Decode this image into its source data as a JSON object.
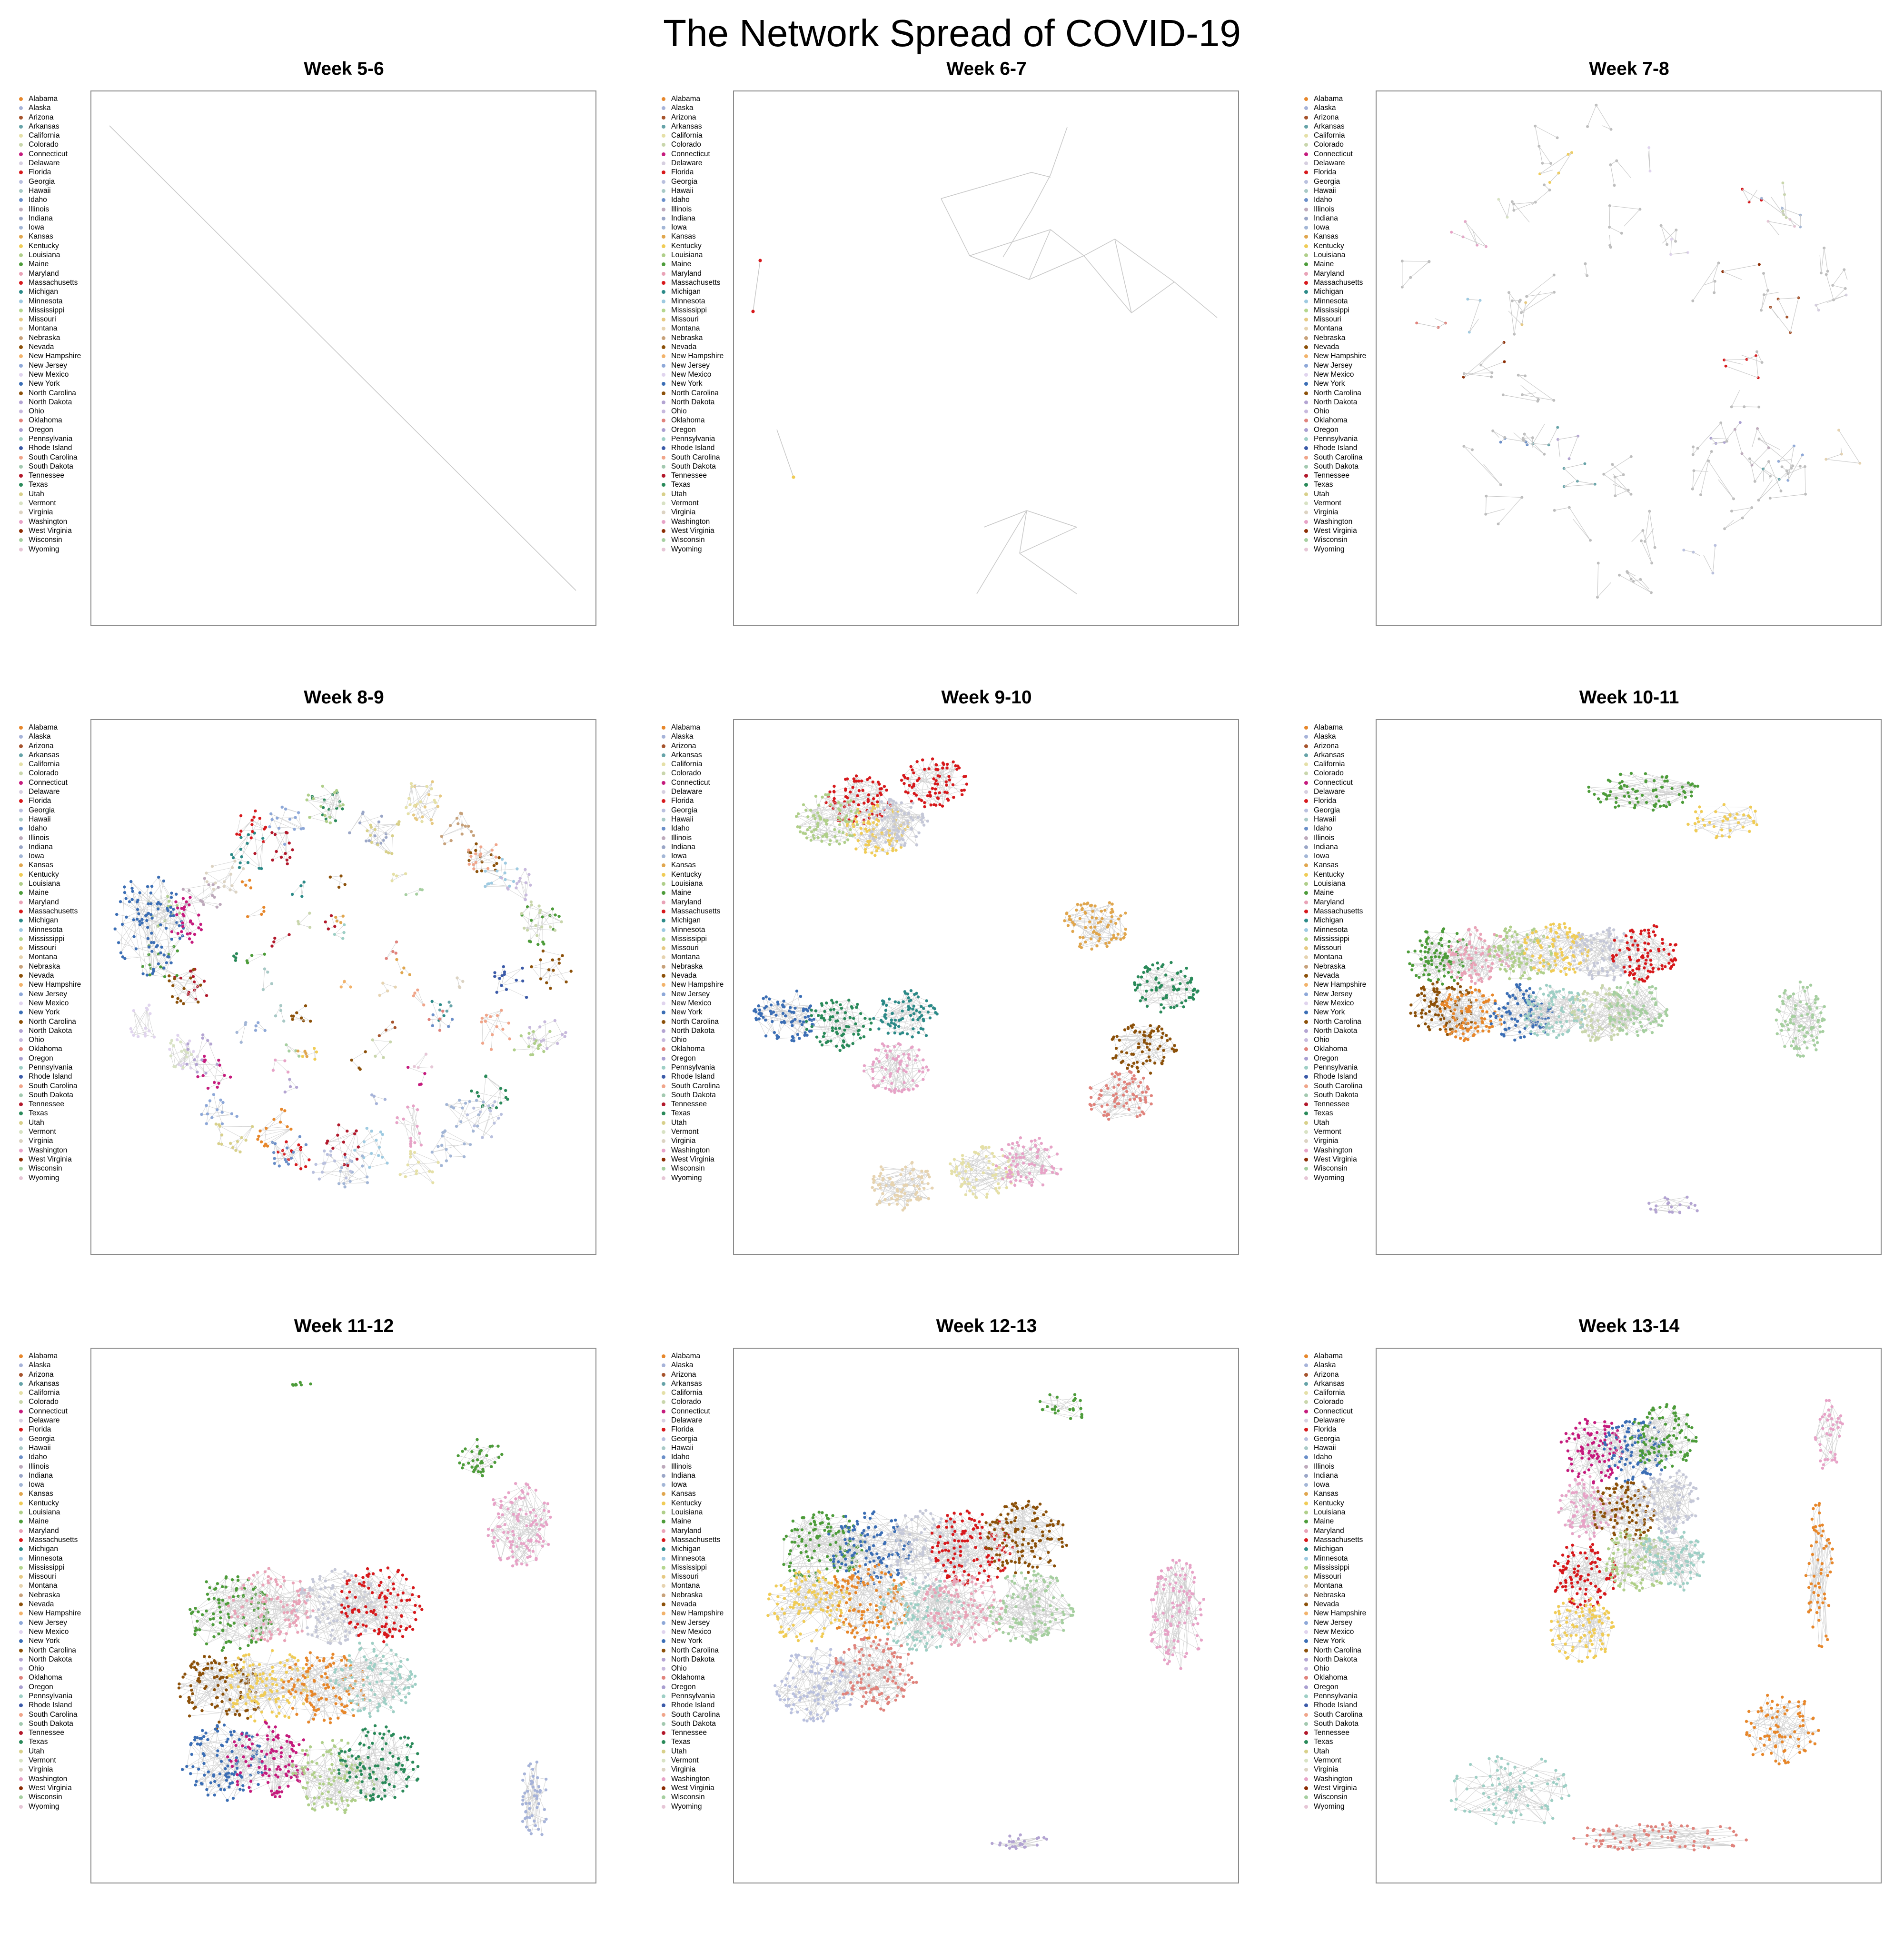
{
  "title": "The Network Spread of COVID-19",
  "states": [
    "Alabama",
    "Alaska",
    "Arizona",
    "Arkansas",
    "California",
    "Colorado",
    "Connecticut",
    "Delaware",
    "Florida",
    "Georgia",
    "Hawaii",
    "Idaho",
    "Illinois",
    "Indiana",
    "Iowa",
    "Kansas",
    "Kentucky",
    "Louisiana",
    "Maine",
    "Maryland",
    "Massachusetts",
    "Michigan",
    "Minnesota",
    "Mississippi",
    "Missouri",
    "Montana",
    "Nebraska",
    "Nevada",
    "New Hampshire",
    "New Jersey",
    "New Mexico",
    "New York",
    "North Carolina",
    "North Dakota",
    "Ohio",
    "Oklahoma",
    "Oregon",
    "Pennsylvania",
    "Rhode Island",
    "South Carolina",
    "South Dakota",
    "Tennessee",
    "Texas",
    "Utah",
    "Vermont",
    "Virginia",
    "Washington",
    "West Virginia",
    "Wisconsin",
    "Wyoming"
  ],
  "state_colors": [
    "#e7872b",
    "#a6b3d9",
    "#a6542d",
    "#66a3a8",
    "#e5e0a7",
    "#c9d6ac",
    "#c51b7d",
    "#d6cfe0",
    "#d7191c",
    "#b9c0de",
    "#a8c9c6",
    "#6b8fc9",
    "#bda9bb",
    "#9aa6c7",
    "#a3b6d6",
    "#e0a64e",
    "#f0cc56",
    "#b0cf8a",
    "#4d9c3a",
    "#e9a3b7",
    "#d7191c",
    "#2c8a88",
    "#9ecae1",
    "#b5d68e",
    "#e6c983",
    "#e6d3b0",
    "#c7a17a",
    "#8c510a",
    "#f2b36b",
    "#8ea8d8",
    "#e0d4ee",
    "#3b6eb5",
    "#8c510a",
    "#b3a4d2",
    "#c7b9dd",
    "#e0837c",
    "#a99fd1",
    "#9ecfc5",
    "#3b5aa8",
    "#f0a58a",
    "#a3c9b0",
    "#b2182b",
    "#2a8a5a",
    "#d8d08a",
    "#d8e2c4",
    "#dcd3c2",
    "#e7a3c7",
    "#8c2d04",
    "#a6cfa0",
    "#e6c6d6"
  ],
  "chart_data": [
    {
      "type": "network",
      "title": "Week 5-6",
      "legend": "left",
      "legend_entries": 50
    },
    {
      "type": "network",
      "title": "Week 6-7",
      "legend": "left",
      "legend_entries": 50
    },
    {
      "type": "network",
      "title": "Week 7-8",
      "legend": "left",
      "legend_entries": 50
    },
    {
      "type": "network",
      "title": "Week 8-9",
      "legend": "left",
      "legend_entries": 50
    },
    {
      "type": "network",
      "title": "Week 9-10",
      "legend": "left",
      "legend_entries": 50
    },
    {
      "type": "network",
      "title": "Week 10-11",
      "legend": "left",
      "legend_entries": 50
    },
    {
      "type": "network",
      "title": "Week 11-12",
      "legend": "left",
      "legend_entries": 50
    },
    {
      "type": "network",
      "title": "Week 12-13",
      "legend": "left",
      "legend_entries": 50
    },
    {
      "type": "network",
      "title": "Week 13-14",
      "legend": "left",
      "legend_entries": 50
    }
  ]
}
